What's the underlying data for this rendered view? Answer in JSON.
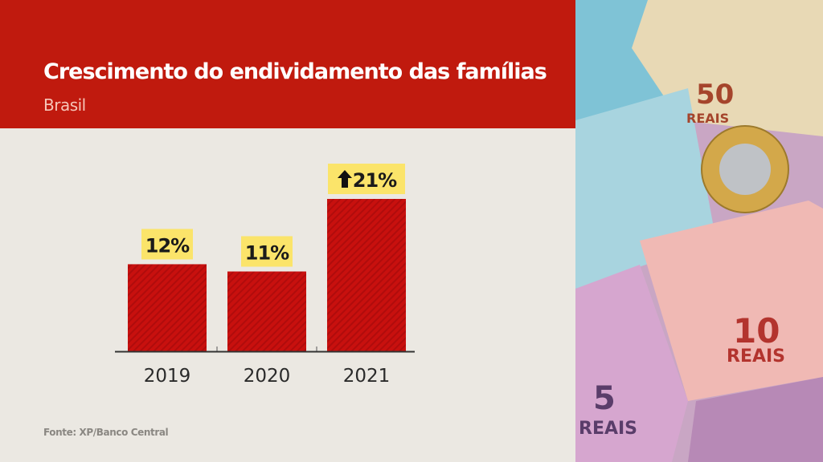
{
  "header": {
    "title": "Crescimento do endividamento das famílias",
    "subtitle": "Brasil"
  },
  "source": "Fonte: XP/Banco Central",
  "photo": {
    "notes": [
      "50",
      "REAIS",
      "10",
      "REAIS",
      "5",
      "REAIS"
    ],
    "description_icon": "banknotes-and-coin-photo"
  },
  "colors": {
    "header": "#c01a0e",
    "bar": "#c8100e",
    "label_bg": "#fbe46a",
    "background": "#ebe8e2"
  },
  "chart_data": {
    "type": "bar",
    "categories": [
      "2019",
      "2020",
      "2021"
    ],
    "values": [
      12,
      11,
      21
    ],
    "data_labels": [
      "12%",
      "11%",
      "21%"
    ],
    "highlight_icon": {
      "index": 2,
      "icon": "arrow-up-icon"
    },
    "title": "Crescimento do endividamento das famílias",
    "subtitle": "Brasil",
    "xlabel": "",
    "ylabel": "",
    "ylim": [
      0,
      21
    ],
    "grid": false,
    "legend": "none"
  }
}
